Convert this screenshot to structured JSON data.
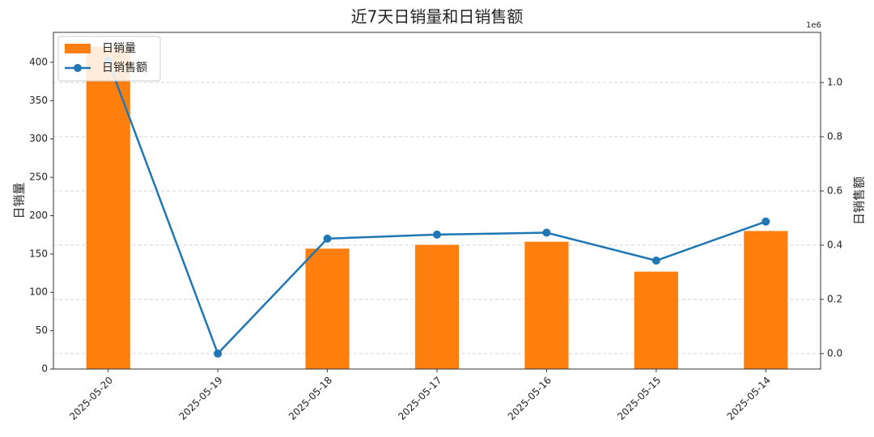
{
  "chart_data": {
    "type": "bar_line",
    "title": "近7天日销量和日销售额",
    "categories": [
      "2025-05-20",
      "2025-05-19",
      "2025-05-18",
      "2025-05-17",
      "2025-05-16",
      "2025-05-15",
      "2025-05-14"
    ],
    "series": [
      {
        "name": "日销量",
        "type": "bar",
        "color": "#ff7f0e",
        "values": [
          420,
          0,
          157,
          162,
          166,
          127,
          180
        ]
      },
      {
        "name": "日销售额",
        "type": "line",
        "axis": "y2",
        "color": "#1f77b4",
        "values": [
          1080000,
          0,
          424000,
          439000,
          446000,
          343000,
          487000
        ]
      }
    ],
    "ylabel": "日销量",
    "y2label": "日销售额",
    "y2offset": "1e6",
    "ylim": [
      0,
      439
    ],
    "yticks": [
      0,
      50,
      100,
      150,
      200,
      250,
      300,
      350,
      400
    ],
    "y2lim": [
      -57000,
      1185000
    ],
    "y2ticks": [
      {
        "value": 0,
        "label": "0.0"
      },
      {
        "value": 200000,
        "label": "0.2"
      },
      {
        "value": 400000,
        "label": "0.4"
      },
      {
        "value": 600000,
        "label": "0.6"
      },
      {
        "value": 800000,
        "label": "0.8"
      },
      {
        "value": 1000000,
        "label": "1.0"
      }
    ],
    "grid": true,
    "legend": "upper left"
  }
}
